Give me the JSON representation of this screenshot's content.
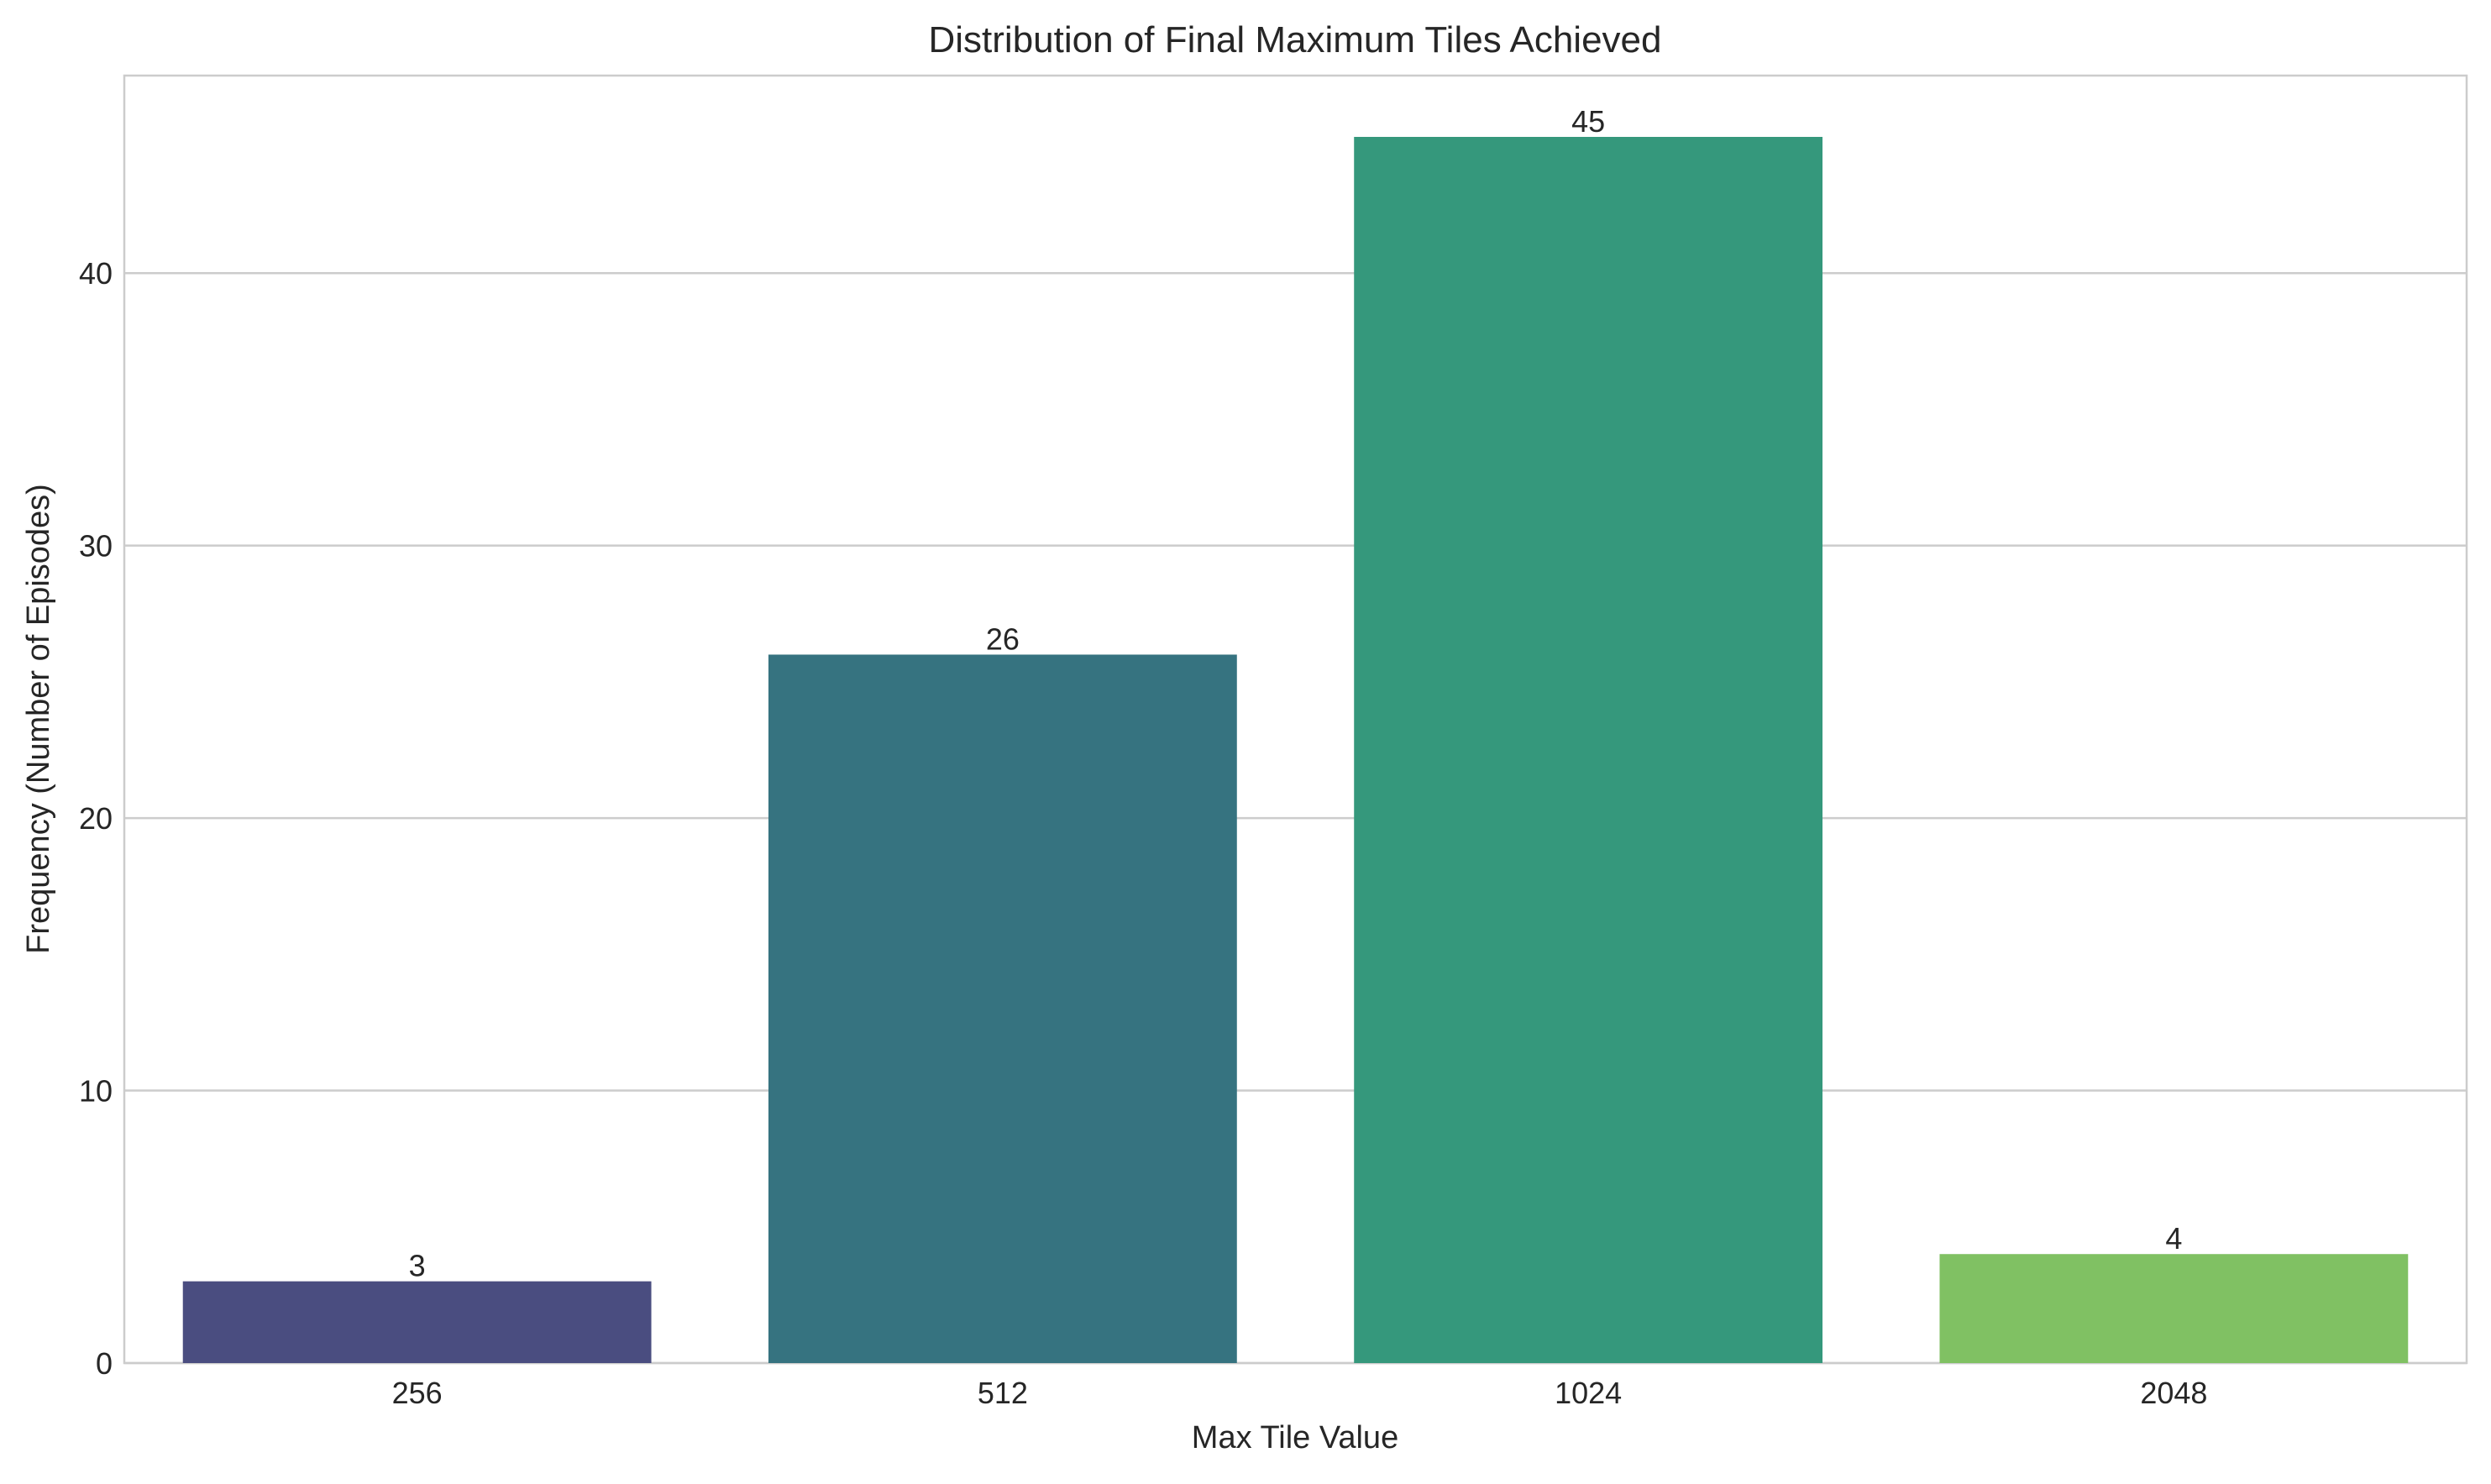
{
  "chart_data": {
    "type": "bar",
    "title": "Distribution of Final Maximum Tiles Achieved",
    "xlabel": "Max Tile Value",
    "ylabel": "Frequency (Number of Episodes)",
    "categories": [
      "256",
      "512",
      "1024",
      "2048"
    ],
    "values": [
      3,
      26,
      45,
      4
    ],
    "data_labels": [
      "3",
      "26",
      "45",
      "4"
    ],
    "colors": [
      "#4a4d80",
      "#367380",
      "#35987c",
      "#80c163"
    ],
    "ylim": [
      0,
      47.25
    ],
    "yticks": [
      0,
      10,
      20,
      30,
      40
    ],
    "ytick_labels": [
      "0",
      "10",
      "20",
      "30",
      "40"
    ],
    "grid": "horizontal",
    "legend": "none"
  },
  "style": {
    "grid_color": "#cccccc",
    "axes_edge_color": "#cccccc",
    "text_color": "#262626",
    "background": "#ffffff"
  }
}
